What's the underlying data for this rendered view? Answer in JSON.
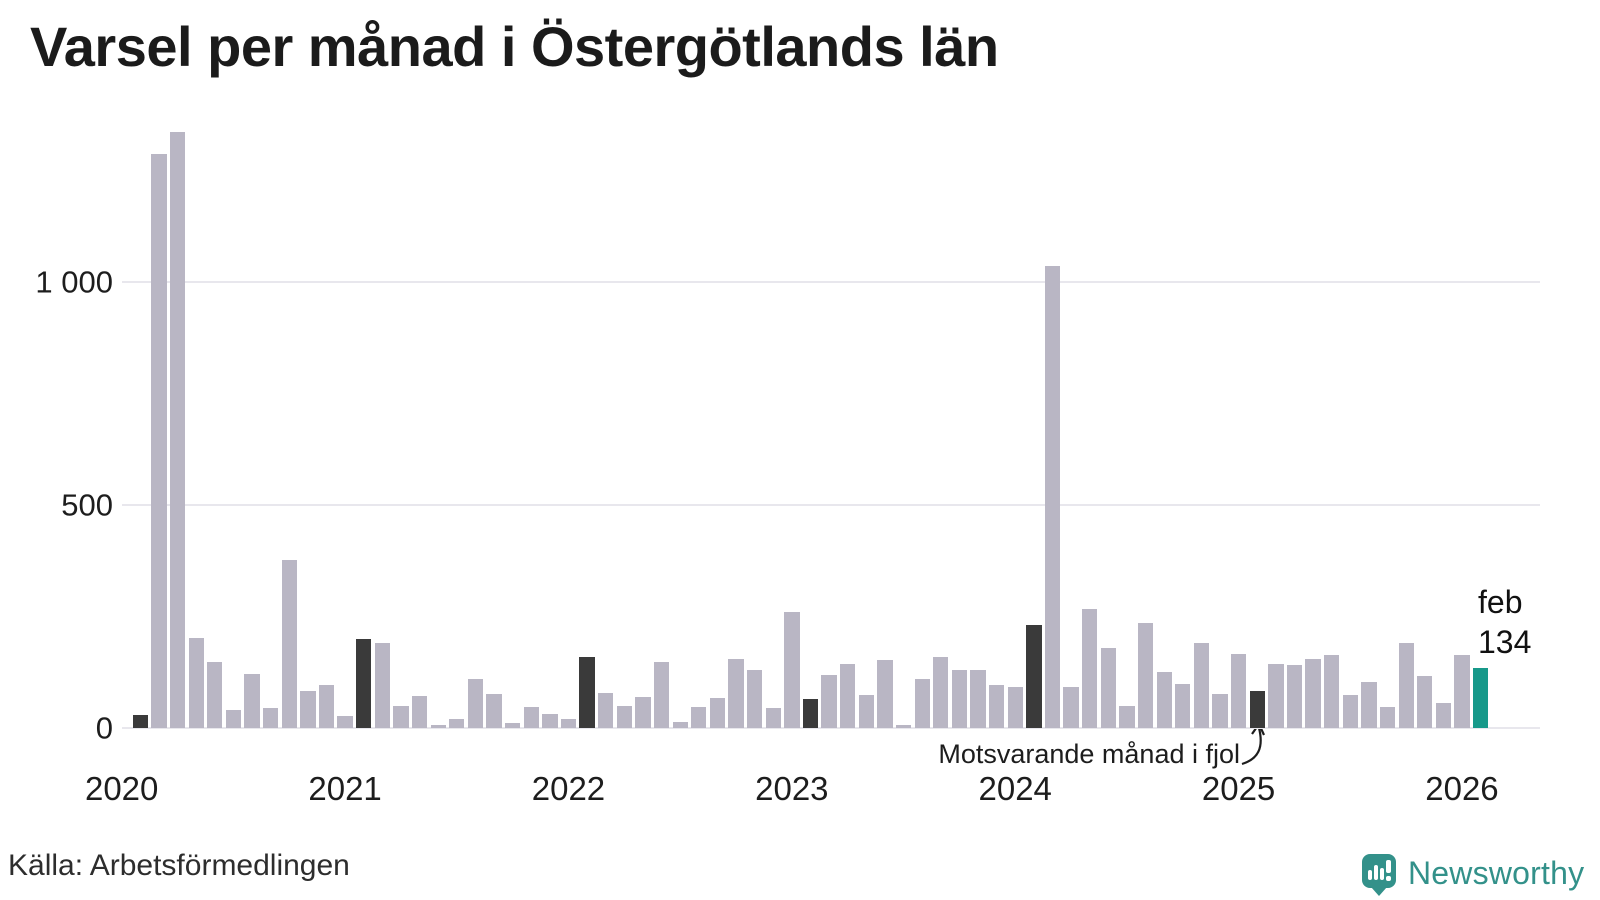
{
  "title": "Varsel per månad i Östergötlands län",
  "source": "Källa: Arbetsförmedlingen",
  "annotation": {
    "text": "Motsvarande månad i fjol"
  },
  "current_label": {
    "month": "feb",
    "value": "134"
  },
  "logo": {
    "text": "Newsworthy"
  },
  "colors": {
    "bar_default": "#b9b6c4",
    "bar_same_month": "#3a3a3a",
    "bar_current": "#17998a",
    "grid": "#e8e7ed",
    "text": "#1d1d1d",
    "logo": "#33918a"
  },
  "chart_data": {
    "type": "bar",
    "title": "Varsel per månad i Östergötlands län",
    "xlabel": "",
    "ylabel": "",
    "ylim": [
      0,
      1400
    ],
    "yticks": [
      0,
      500,
      1000
    ],
    "ytick_labels": [
      "0",
      "500",
      "1 000"
    ],
    "x_year_labels": [
      "2020",
      "2021",
      "2022",
      "2023",
      "2024",
      "2025",
      "2026"
    ],
    "grid": "horizontal",
    "legend_position": "none",
    "highlight_note": "dark bars = same month (feb) in earlier years; teal bar = latest month",
    "series": [
      {
        "m": "2020-02",
        "v": 30,
        "t": "same-month"
      },
      {
        "m": "2020-03",
        "v": 1285,
        "t": "default"
      },
      {
        "m": "2020-04",
        "v": 1335,
        "t": "default"
      },
      {
        "m": "2020-05",
        "v": 203,
        "t": "default"
      },
      {
        "m": "2020-06",
        "v": 149,
        "t": "default"
      },
      {
        "m": "2020-07",
        "v": 40,
        "t": "default"
      },
      {
        "m": "2020-08",
        "v": 121,
        "t": "default"
      },
      {
        "m": "2020-09",
        "v": 45,
        "t": "default"
      },
      {
        "m": "2020-10",
        "v": 377,
        "t": "default"
      },
      {
        "m": "2020-11",
        "v": 83,
        "t": "default"
      },
      {
        "m": "2020-12",
        "v": 98,
        "t": "default"
      },
      {
        "m": "2021-01",
        "v": 28,
        "t": "default"
      },
      {
        "m": "2021-02",
        "v": 200,
        "t": "same-month"
      },
      {
        "m": "2021-03",
        "v": 190,
        "t": "default"
      },
      {
        "m": "2021-04",
        "v": 49,
        "t": "default"
      },
      {
        "m": "2021-05",
        "v": 73,
        "t": "default"
      },
      {
        "m": "2021-06",
        "v": 8,
        "t": "default"
      },
      {
        "m": "2021-07",
        "v": 20,
        "t": "default"
      },
      {
        "m": "2021-08",
        "v": 110,
        "t": "default"
      },
      {
        "m": "2021-09",
        "v": 77,
        "t": "default"
      },
      {
        "m": "2021-10",
        "v": 12,
        "t": "default"
      },
      {
        "m": "2021-11",
        "v": 48,
        "t": "default"
      },
      {
        "m": "2021-12",
        "v": 32,
        "t": "default"
      },
      {
        "m": "2022-01",
        "v": 20,
        "t": "default"
      },
      {
        "m": "2022-02",
        "v": 160,
        "t": "same-month"
      },
      {
        "m": "2022-03",
        "v": 80,
        "t": "default"
      },
      {
        "m": "2022-04",
        "v": 50,
        "t": "default"
      },
      {
        "m": "2022-05",
        "v": 70,
        "t": "default"
      },
      {
        "m": "2022-06",
        "v": 148,
        "t": "default"
      },
      {
        "m": "2022-07",
        "v": 14,
        "t": "default"
      },
      {
        "m": "2022-08",
        "v": 48,
        "t": "default"
      },
      {
        "m": "2022-09",
        "v": 68,
        "t": "default"
      },
      {
        "m": "2022-10",
        "v": 155,
        "t": "default"
      },
      {
        "m": "2022-11",
        "v": 130,
        "t": "default"
      },
      {
        "m": "2022-12",
        "v": 45,
        "t": "default"
      },
      {
        "m": "2023-01",
        "v": 260,
        "t": "default"
      },
      {
        "m": "2023-02",
        "v": 65,
        "t": "same-month"
      },
      {
        "m": "2023-03",
        "v": 120,
        "t": "default"
      },
      {
        "m": "2023-04",
        "v": 145,
        "t": "default"
      },
      {
        "m": "2023-05",
        "v": 75,
        "t": "default"
      },
      {
        "m": "2023-06",
        "v": 153,
        "t": "default"
      },
      {
        "m": "2023-07",
        "v": 8,
        "t": "default"
      },
      {
        "m": "2023-08",
        "v": 110,
        "t": "default"
      },
      {
        "m": "2023-09",
        "v": 160,
        "t": "default"
      },
      {
        "m": "2023-10",
        "v": 130,
        "t": "default"
      },
      {
        "m": "2023-11",
        "v": 130,
        "t": "default"
      },
      {
        "m": "2023-12",
        "v": 97,
        "t": "default"
      },
      {
        "m": "2024-01",
        "v": 92,
        "t": "default"
      },
      {
        "m": "2024-02",
        "v": 232,
        "t": "same-month"
      },
      {
        "m": "2024-03",
        "v": 1035,
        "t": "default"
      },
      {
        "m": "2024-04",
        "v": 93,
        "t": "default"
      },
      {
        "m": "2024-05",
        "v": 268,
        "t": "default"
      },
      {
        "m": "2024-06",
        "v": 180,
        "t": "default"
      },
      {
        "m": "2024-07",
        "v": 49,
        "t": "default"
      },
      {
        "m": "2024-08",
        "v": 235,
        "t": "default"
      },
      {
        "m": "2024-09",
        "v": 127,
        "t": "default"
      },
      {
        "m": "2024-10",
        "v": 100,
        "t": "default"
      },
      {
        "m": "2024-11",
        "v": 192,
        "t": "default"
      },
      {
        "m": "2024-12",
        "v": 76,
        "t": "default"
      },
      {
        "m": "2025-01",
        "v": 167,
        "t": "default"
      },
      {
        "m": "2025-02",
        "v": 84,
        "t": "same-month"
      },
      {
        "m": "2025-03",
        "v": 145,
        "t": "default"
      },
      {
        "m": "2025-04",
        "v": 142,
        "t": "default"
      },
      {
        "m": "2025-05",
        "v": 155,
        "t": "default"
      },
      {
        "m": "2025-06",
        "v": 163,
        "t": "default"
      },
      {
        "m": "2025-07",
        "v": 74,
        "t": "default"
      },
      {
        "m": "2025-08",
        "v": 104,
        "t": "default"
      },
      {
        "m": "2025-09",
        "v": 48,
        "t": "default"
      },
      {
        "m": "2025-10",
        "v": 190,
        "t": "default"
      },
      {
        "m": "2025-11",
        "v": 118,
        "t": "default"
      },
      {
        "m": "2025-12",
        "v": 56,
        "t": "default"
      },
      {
        "m": "2026-01",
        "v": 165,
        "t": "default"
      },
      {
        "m": "2026-02",
        "v": 134,
        "t": "current"
      }
    ]
  }
}
